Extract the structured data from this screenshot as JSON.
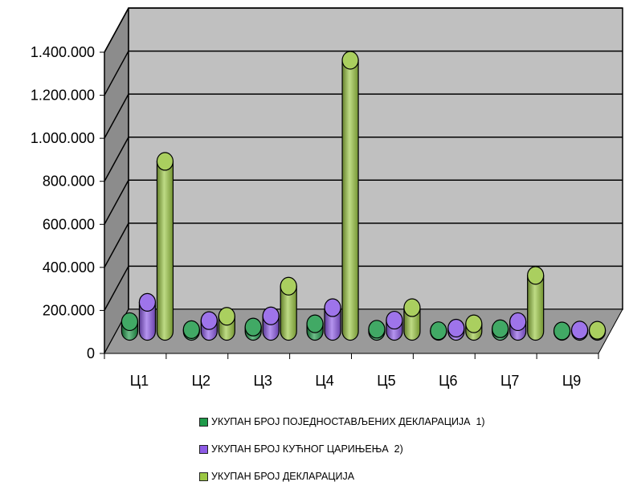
{
  "chart_data": {
    "type": "bar",
    "style": "3d-cylinder",
    "categories": [
      "Ц1",
      "Ц2",
      "Ц3",
      "Ц4",
      "Ц5",
      "Ц6",
      "Ц7",
      "Ц9"
    ],
    "series": [
      {
        "name": "УКУПАН БРОЈ ПОЈЕДНОСТАВЉЕНИХ ДЕКЛАРАЦИЈА  1)",
        "color": "#1f9a4a",
        "values": [
          45000,
          8000,
          20000,
          35000,
          10000,
          3000,
          12000,
          2000
        ]
      },
      {
        "name": "УКУПАН БРОЈ КУЋНОГ ЦАРИЊЕЊА  2)",
        "color": "#8d5be6",
        "values": [
          135000,
          50000,
          72000,
          110000,
          52000,
          15000,
          45000,
          6000
        ]
      },
      {
        "name": "УКУПАН БРОЈ ДЕКЛАРАЦИЈА",
        "color": "#9bc743",
        "values": [
          790000,
          70000,
          210000,
          1260000,
          110000,
          35000,
          260000,
          5000
        ]
      }
    ],
    "y_ticks": [
      "0",
      "200.000",
      "400.000",
      "600.000",
      "800.000",
      "1.000.000",
      "1.200.000",
      "1.400.000"
    ],
    "ylim": [
      0,
      1400000
    ],
    "grid": true,
    "legend_position": "bottom"
  }
}
